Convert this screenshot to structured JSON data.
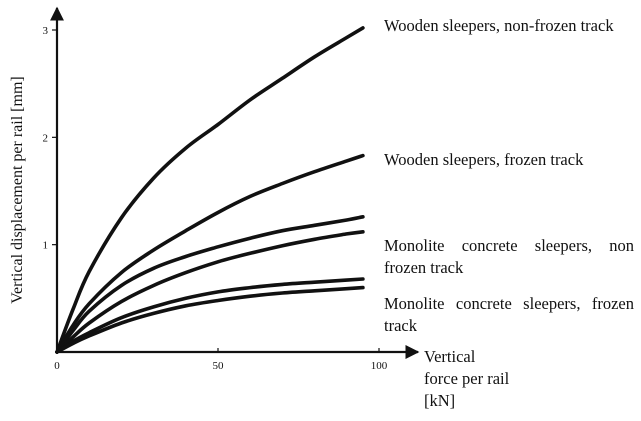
{
  "chart_data": {
    "type": "line",
    "title": "",
    "xlabel": "Vertical\nforce per rail\n[kN]",
    "ylabel": "Vertical displacement per rail [mm]",
    "xlim": [
      0,
      100
    ],
    "ylim": [
      0,
      3.1
    ],
    "xticks": [
      "0",
      "50",
      "100"
    ],
    "yticks": [
      "1",
      "2",
      "3"
    ],
    "grid": false,
    "legend": "none",
    "annotations": [
      "Wooden sleepers, non-frozen track",
      "Wooden sleepers, frozen track",
      "Monolite concrete sleepers, non frozen track",
      "Monolite concrete sleepers, frozen track"
    ],
    "series": [
      {
        "x": [
          0,
          5,
          10,
          20,
          30,
          40,
          50,
          60,
          70,
          80,
          90,
          95
        ],
        "y": [
          0,
          0.4,
          0.75,
          1.25,
          1.62,
          1.9,
          2.12,
          2.35,
          2.55,
          2.75,
          2.93,
          3.02
        ]
      },
      {
        "x": [
          0,
          5,
          10,
          20,
          30,
          40,
          50,
          60,
          70,
          80,
          90,
          95
        ],
        "y": [
          0,
          0.25,
          0.45,
          0.74,
          0.95,
          1.13,
          1.3,
          1.45,
          1.57,
          1.68,
          1.78,
          1.83
        ]
      },
      {
        "x": [
          0,
          5,
          10,
          20,
          30,
          40,
          50,
          60,
          70,
          80,
          90,
          95
        ],
        "y": [
          0,
          0.2,
          0.38,
          0.62,
          0.78,
          0.89,
          0.98,
          1.06,
          1.13,
          1.18,
          1.23,
          1.26
        ]
      },
      {
        "x": [
          0,
          5,
          10,
          20,
          30,
          40,
          50,
          60,
          70,
          80,
          90,
          95
        ],
        "y": [
          0,
          0.14,
          0.27,
          0.47,
          0.62,
          0.74,
          0.84,
          0.92,
          0.99,
          1.05,
          1.1,
          1.12
        ]
      },
      {
        "x": [
          0,
          5,
          10,
          20,
          30,
          40,
          50,
          60,
          70,
          80,
          90,
          95
        ],
        "y": [
          0,
          0.1,
          0.18,
          0.32,
          0.42,
          0.5,
          0.56,
          0.6,
          0.63,
          0.65,
          0.67,
          0.68
        ]
      },
      {
        "x": [
          0,
          5,
          10,
          20,
          30,
          40,
          50,
          60,
          70,
          80,
          90,
          95
        ],
        "y": [
          0,
          0.08,
          0.15,
          0.27,
          0.36,
          0.43,
          0.48,
          0.52,
          0.55,
          0.57,
          0.59,
          0.6
        ]
      }
    ]
  }
}
